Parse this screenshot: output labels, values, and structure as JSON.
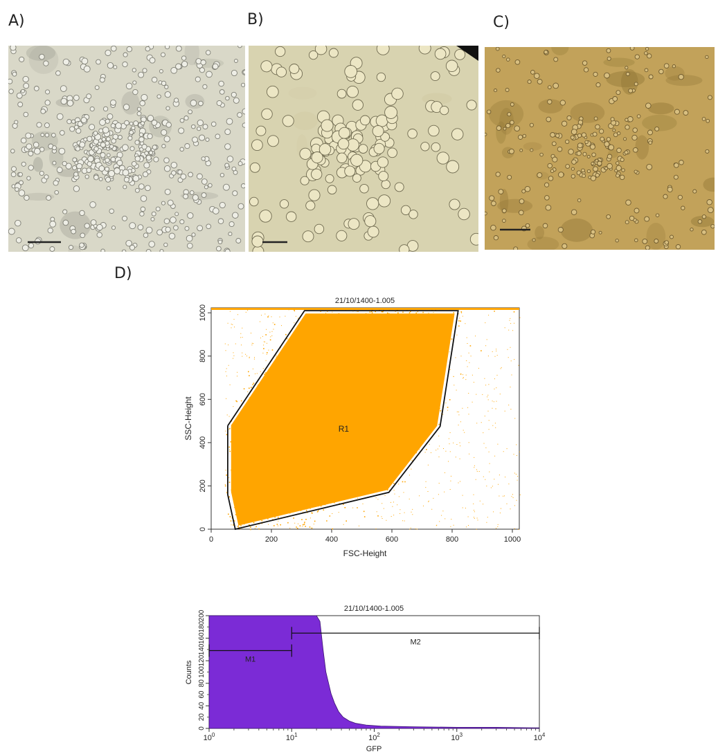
{
  "panels": {
    "a": {
      "label": "A)"
    },
    "b": {
      "label": "B)"
    },
    "c": {
      "label": "C)"
    },
    "d": {
      "label": "D)"
    }
  },
  "micrographs": [
    {
      "id": "a",
      "background": "#d9d8c8",
      "cell_fill": "#eeeee6",
      "cell_stroke": "#7e7e74",
      "scale_bar_color": "#222222"
    },
    {
      "id": "b",
      "background": "#d8d3b0",
      "cell_fill": "#ece6c4",
      "cell_stroke": "#6f6a50",
      "scale_bar_color": "#222222"
    },
    {
      "id": "c",
      "background": "#c2a25a",
      "cell_fill": "#d8bf80",
      "cell_stroke": "#6e5a2e",
      "scale_bar_color": "#222222"
    }
  ],
  "chart_data": [
    {
      "type": "scatter",
      "title": "21/10/1400-1.005",
      "xlabel": "FSC-Height",
      "ylabel": "SSC-Height",
      "xlim": [
        0,
        1023
      ],
      "ylim": [
        0,
        1023
      ],
      "xticks": [
        "0",
        "200",
        "400",
        "600",
        "800",
        "1000"
      ],
      "yticks": [
        "0",
        "200",
        "400",
        "600",
        "800",
        "1000"
      ],
      "point_color": "#ffa500",
      "gate": {
        "name": "R1",
        "vertices": [
          [
            55,
            478
          ],
          [
            55,
            160
          ],
          [
            80,
            0
          ],
          [
            590,
            170
          ],
          [
            760,
            475
          ],
          [
            820,
            1010
          ],
          [
            310,
            1010
          ],
          [
            55,
            478
          ]
        ]
      }
    },
    {
      "type": "area",
      "title": "21/10/1400-1.005",
      "xlabel": "GFP",
      "ylabel": "Counts",
      "xscale": "log",
      "xlim": [
        1,
        10000
      ],
      "ylim": [
        0,
        200
      ],
      "xticks": [
        {
          "base": "10",
          "exp": "0"
        },
        {
          "base": "10",
          "exp": "1"
        },
        {
          "base": "10",
          "exp": "2"
        },
        {
          "base": "10",
          "exp": "3"
        },
        {
          "base": "10",
          "exp": "4"
        }
      ],
      "yticks": [
        "0",
        "40",
        "80",
        "120",
        "160",
        "200"
      ],
      "yticks_minor": [
        "20",
        "60",
        "100",
        "140",
        "180"
      ],
      "fill_color": "#7b2bd6",
      "histogram": [
        [
          1,
          200
        ],
        [
          20,
          200
        ],
        [
          22,
          190
        ],
        [
          24,
          140
        ],
        [
          26,
          100
        ],
        [
          28,
          80
        ],
        [
          30,
          62
        ],
        [
          33,
          45
        ],
        [
          37,
          30
        ],
        [
          42,
          20
        ],
        [
          50,
          13
        ],
        [
          60,
          9
        ],
        [
          80,
          6
        ],
        [
          120,
          4
        ],
        [
          300,
          3
        ],
        [
          1000,
          2
        ],
        [
          3000,
          2
        ],
        [
          10000,
          1
        ]
      ],
      "markers": [
        {
          "name": "M1",
          "from": 1,
          "to": 10,
          "y": 138
        },
        {
          "name": "M2",
          "from": 10,
          "to": 10000,
          "y": 169
        }
      ]
    }
  ]
}
